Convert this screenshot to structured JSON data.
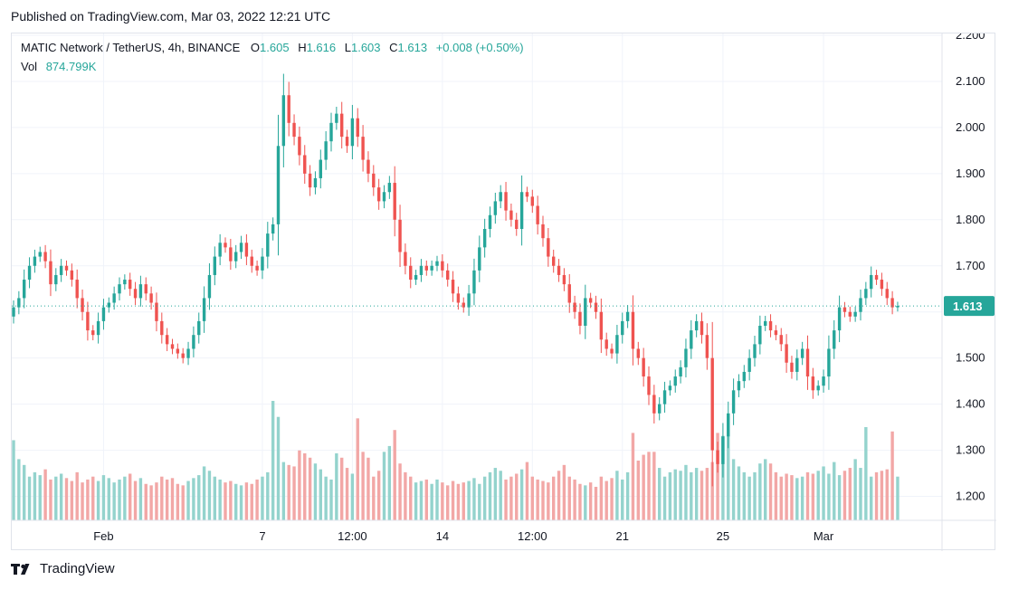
{
  "published": "Published on TradingView.com, Mar 03, 2022 12:21 UTC",
  "legend": {
    "symbol": "MATIC Network / TetherUS, 4h, BINANCE",
    "o_label": "O",
    "o": "1.605",
    "h_label": "H",
    "h": "1.616",
    "l_label": "L",
    "l": "1.603",
    "c_label": "C",
    "c": "1.613",
    "change": "+0.008 (+0.50%)",
    "vol_label": "Vol",
    "vol": "874.799K"
  },
  "footer": {
    "brand": "TradingView"
  },
  "colors": {
    "up": "#26a69a",
    "down": "#ef5350",
    "up_volume": "#94d3cd",
    "down_volume": "#f2a7a6",
    "grid": "#f0f3fa",
    "text": "#131722"
  },
  "chart_data": {
    "type": "candlestick",
    "title": "MATIC Network / TetherUS, 4h, BINANCE",
    "y_axis": {
      "min": 1.15,
      "max": 2.2,
      "ticks": [
        "1.200",
        "1.300",
        "1.400",
        "1.500",
        "1.600",
        "1.700",
        "1.800",
        "1.900",
        "2.000",
        "2.100",
        "2.200"
      ]
    },
    "x_axis": {
      "labels": [
        {
          "label": "Feb",
          "index": 17
        },
        {
          "label": "7",
          "index": 47
        },
        {
          "label": "12:00",
          "index": 64
        },
        {
          "label": "14",
          "index": 81
        },
        {
          "label": "12:00",
          "index": 98
        },
        {
          "label": "21",
          "index": 115
        },
        {
          "label": "25",
          "index": 134
        },
        {
          "label": "Mar",
          "index": 153
        }
      ]
    },
    "last_price": "1.613",
    "last_value": 1.613,
    "closes": [
      1.61,
      1.63,
      1.67,
      1.7,
      1.72,
      1.73,
      1.71,
      1.66,
      1.68,
      1.7,
      1.69,
      1.67,
      1.63,
      1.6,
      1.56,
      1.55,
      1.58,
      1.61,
      1.62,
      1.64,
      1.66,
      1.67,
      1.65,
      1.63,
      1.66,
      1.64,
      1.62,
      1.58,
      1.55,
      1.53,
      1.52,
      1.51,
      1.5,
      1.52,
      1.55,
      1.58,
      1.63,
      1.68,
      1.72,
      1.75,
      1.74,
      1.71,
      1.73,
      1.75,
      1.72,
      1.7,
      1.69,
      1.72,
      1.77,
      1.79,
      1.96,
      2.07,
      2.01,
      1.98,
      1.94,
      1.9,
      1.87,
      1.89,
      1.93,
      1.97,
      2.01,
      2.03,
      1.98,
      1.96,
      2.02,
      1.98,
      1.93,
      1.9,
      1.87,
      1.84,
      1.86,
      1.88,
      1.8,
      1.73,
      1.7,
      1.67,
      1.68,
      1.7,
      1.69,
      1.7,
      1.71,
      1.69,
      1.67,
      1.64,
      1.62,
      1.61,
      1.64,
      1.69,
      1.74,
      1.78,
      1.81,
      1.84,
      1.86,
      1.82,
      1.8,
      1.78,
      1.86,
      1.85,
      1.83,
      1.79,
      1.76,
      1.72,
      1.7,
      1.68,
      1.66,
      1.62,
      1.6,
      1.57,
      1.63,
      1.62,
      1.6,
      1.54,
      1.52,
      1.51,
      1.55,
      1.58,
      1.6,
      1.52,
      1.5,
      1.46,
      1.42,
      1.38,
      1.4,
      1.43,
      1.44,
      1.46,
      1.48,
      1.52,
      1.56,
      1.58,
      1.55,
      1.5,
      1.3,
      1.27,
      1.33,
      1.38,
      1.43,
      1.45,
      1.47,
      1.5,
      1.53,
      1.57,
      1.58,
      1.56,
      1.55,
      1.53,
      1.49,
      1.47,
      1.5,
      1.52,
      1.46,
      1.43,
      1.44,
      1.46,
      1.52,
      1.56,
      1.61,
      1.6,
      1.59,
      1.6,
      1.63,
      1.65,
      1.68,
      1.67,
      1.65,
      1.63,
      1.61,
      1.613
    ],
    "volumes": [
      0.55,
      0.42,
      0.38,
      0.3,
      0.33,
      0.31,
      0.35,
      0.28,
      0.3,
      0.32,
      0.29,
      0.27,
      0.33,
      0.26,
      0.28,
      0.3,
      0.27,
      0.31,
      0.29,
      0.26,
      0.28,
      0.3,
      0.32,
      0.27,
      0.29,
      0.25,
      0.24,
      0.26,
      0.3,
      0.28,
      0.29,
      0.25,
      0.24,
      0.27,
      0.29,
      0.31,
      0.37,
      0.34,
      0.3,
      0.28,
      0.26,
      0.27,
      0.25,
      0.24,
      0.26,
      0.25,
      0.28,
      0.3,
      0.33,
      0.82,
      0.71,
      0.4,
      0.38,
      0.37,
      0.48,
      0.46,
      0.43,
      0.39,
      0.35,
      0.3,
      0.28,
      0.46,
      0.43,
      0.36,
      0.32,
      0.7,
      0.47,
      0.43,
      0.3,
      0.34,
      0.47,
      0.51,
      0.62,
      0.39,
      0.33,
      0.3,
      0.26,
      0.27,
      0.28,
      0.25,
      0.28,
      0.26,
      0.24,
      0.27,
      0.25,
      0.26,
      0.27,
      0.29,
      0.25,
      0.3,
      0.33,
      0.36,
      0.34,
      0.28,
      0.3,
      0.32,
      0.35,
      0.4,
      0.3,
      0.28,
      0.27,
      0.26,
      0.3,
      0.34,
      0.38,
      0.3,
      0.28,
      0.25,
      0.24,
      0.26,
      0.23,
      0.3,
      0.27,
      0.29,
      0.34,
      0.28,
      0.33,
      0.6,
      0.41,
      0.45,
      0.47,
      0.47,
      0.36,
      0.3,
      0.33,
      0.35,
      0.34,
      0.38,
      0.33,
      0.36,
      0.34,
      0.36,
      0.4,
      0.6,
      0.58,
      0.58,
      0.42,
      0.37,
      0.33,
      0.3,
      0.33,
      0.39,
      0.42,
      0.39,
      0.33,
      0.3,
      0.32,
      0.31,
      0.29,
      0.3,
      0.33,
      0.32,
      0.34,
      0.37,
      0.32,
      0.4,
      0.31,
      0.34,
      0.36,
      0.42,
      0.36,
      0.64,
      0.3,
      0.33,
      0.34,
      0.35,
      0.61,
      0.3,
      0.32,
      0.31,
      0.26,
      0.14
    ]
  }
}
